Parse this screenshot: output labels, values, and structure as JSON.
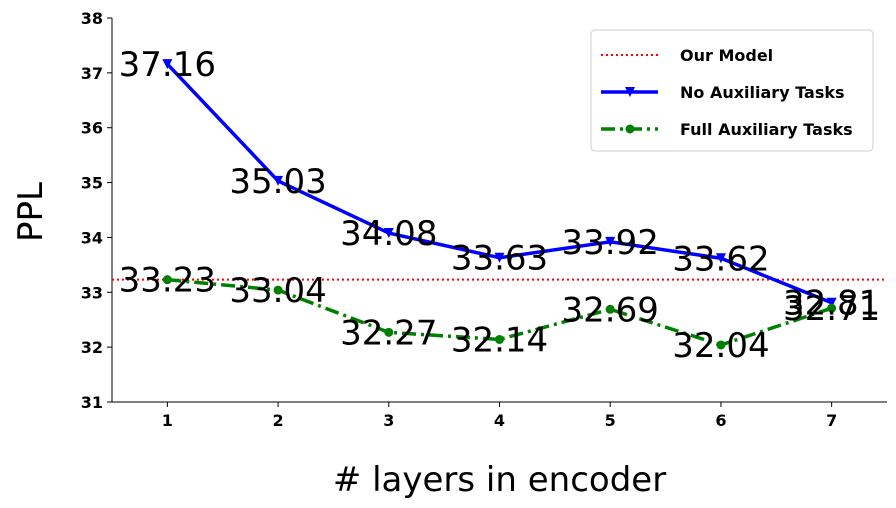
{
  "chart_data": {
    "type": "line",
    "xlabel": "# layers in encoder",
    "ylabel": "PPL",
    "x": [
      1,
      2,
      3,
      4,
      5,
      6,
      7
    ],
    "xlim": [
      0.5,
      7.5
    ],
    "ylim": [
      31,
      38
    ],
    "yticks": [
      31,
      32,
      33,
      34,
      35,
      36,
      37,
      38
    ],
    "xticks": [
      1,
      2,
      3,
      4,
      5,
      6,
      7
    ],
    "grid": false,
    "legend_position": "top-right",
    "series": [
      {
        "name": "Our Model",
        "style": "dotted",
        "marker": "none",
        "color": "#ff0000",
        "values": [
          33.23,
          33.23,
          33.23,
          33.23,
          33.23,
          33.23,
          33.23
        ]
      },
      {
        "name": "No Auxiliary Tasks",
        "style": "solid",
        "marker": "triangle-down",
        "color": "#0000ff",
        "values": [
          37.16,
          35.03,
          34.08,
          33.63,
          33.92,
          33.62,
          32.81
        ],
        "labels": [
          "37.16",
          "35.03",
          "34.08",
          "33.63",
          "33.92",
          "33.62",
          "32.81"
        ]
      },
      {
        "name": "Full Auxiliary Tasks",
        "style": "dashdot",
        "marker": "circle",
        "color": "#008000",
        "values": [
          33.23,
          33.04,
          32.27,
          32.14,
          32.69,
          32.04,
          32.71
        ],
        "labels": [
          "33.23",
          "33.04",
          "32.27",
          "32.14",
          "32.69",
          "32.04",
          "32.71"
        ]
      }
    ]
  }
}
